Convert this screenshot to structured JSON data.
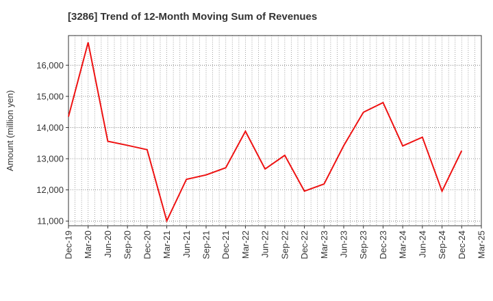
{
  "chart_data": {
    "type": "line",
    "title": "[3286]  Trend of 12-Month Moving Sum of Revenues",
    "ylabel": "Amount (million yen)",
    "xlabel": "",
    "ylim": [
      10850,
      16950
    ],
    "y_ticks": [
      11000,
      12000,
      13000,
      14000,
      15000,
      16000
    ],
    "y_tick_labels": [
      "11,000",
      "12,000",
      "13,000",
      "14,000",
      "15,000",
      "16,000"
    ],
    "x_tick_labels": [
      "Dec-19",
      "Mar-20",
      "Jun-20",
      "Sep-20",
      "Dec-20",
      "Mar-21",
      "Jun-21",
      "Sep-21",
      "Dec-21",
      "Mar-22",
      "Jun-22",
      "Sep-22",
      "Dec-22",
      "Mar-23",
      "Jun-23",
      "Sep-23",
      "Dec-23",
      "Mar-24",
      "Jun-24",
      "Sep-24",
      "Dec-24",
      "Mar-25"
    ],
    "grid": true,
    "series": [
      {
        "color": "#ee1111",
        "x": [
          "Dec-19",
          "Mar-20",
          "Jun-20",
          "Sep-20",
          "Dec-20",
          "Mar-21",
          "Jun-21",
          "Sep-21",
          "Dec-21",
          "Mar-22",
          "Jun-22",
          "Sep-22",
          "Dec-22",
          "Mar-23",
          "Jun-23",
          "Sep-23",
          "Dec-23",
          "Mar-24",
          "Jun-24",
          "Sep-24",
          "Dec-24"
        ],
        "values": [
          14350,
          16730,
          13560,
          13430,
          13290,
          11010,
          12340,
          12480,
          12710,
          13880,
          12670,
          13110,
          11960,
          12190,
          13420,
          14490,
          14800,
          13410,
          13690,
          11960,
          13260
        ]
      }
    ]
  }
}
